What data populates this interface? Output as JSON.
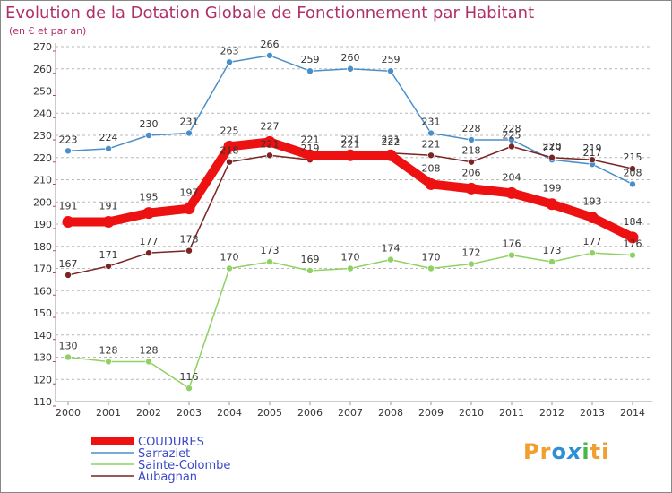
{
  "header": {
    "title": "Evolution de la Dotation Globale de Fonctionnement par Habitant",
    "subtitle": "(en € et par an)"
  },
  "logo": {
    "text": "Proxiti",
    "parts": [
      "Pr",
      "o",
      "x",
      "i",
      "ti"
    ]
  },
  "colors": {
    "title": "#b0306a",
    "axis_text": "#333333",
    "legend_text": "#3b48c8",
    "frame": "#888888",
    "grid": "#b8b8b8"
  },
  "chart_data": {
    "type": "line",
    "title": "Evolution de la Dotation Globale de Fonctionnement par Habitant",
    "subtitle": "(en € et par an)",
    "xlabel": "",
    "ylabel": "",
    "x": [
      "2000",
      "2001",
      "2002",
      "2003",
      "2004",
      "2005",
      "2006",
      "2007",
      "2008",
      "2009",
      "2010",
      "2011",
      "2012",
      "2013",
      "2014"
    ],
    "ylim": [
      110,
      270
    ],
    "yticks": [
      110,
      120,
      130,
      140,
      150,
      160,
      170,
      180,
      190,
      200,
      210,
      220,
      230,
      240,
      250,
      260,
      270
    ],
    "grid": "dashed-horizontal",
    "legend_position": "bottom-left",
    "series": [
      {
        "name": "COUDURES",
        "color": "#ee1111",
        "values": [
          191,
          191,
          195,
          197,
          225,
          227,
          221,
          221,
          221,
          208,
          206,
          204,
          199,
          193,
          184
        ],
        "emphasis": true
      },
      {
        "name": "Sarraziet",
        "color": "#4a8fc9",
        "values": [
          223,
          224,
          230,
          231,
          263,
          266,
          259,
          260,
          259,
          231,
          228,
          228,
          219,
          217,
          208
        ],
        "emphasis": false
      },
      {
        "name": "Sainte-Colombe",
        "color": "#8fd162",
        "values": [
          130,
          128,
          128,
          116,
          170,
          173,
          169,
          170,
          174,
          170,
          172,
          176,
          173,
          177,
          176
        ],
        "emphasis": false
      },
      {
        "name": "Aubagnan",
        "color": "#7a2424",
        "values": [
          167,
          171,
          177,
          178,
          218,
          221,
          219,
          221,
          222,
          221,
          218,
          225,
          220,
          219,
          215
        ],
        "emphasis": false
      }
    ]
  }
}
